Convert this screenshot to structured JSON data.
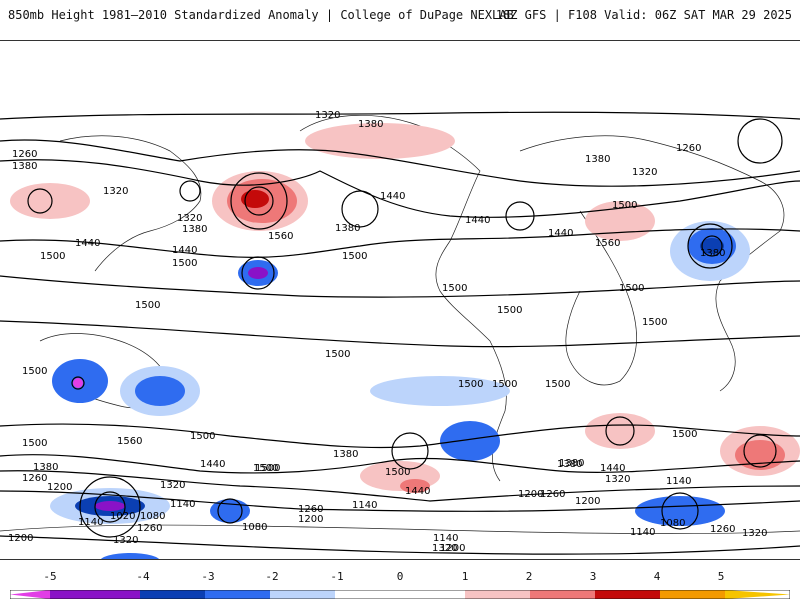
{
  "header": {
    "title_left": "850mb Height 1981–2010 Standardized Anomaly | College of DuPage NEXLAB",
    "title_right": "18Z GFS | F108 Valid: 06Z SAT MAR 29 2025"
  },
  "colors": {
    "neg5": "#e23ee6",
    "neg4": "#8a12c7",
    "neg3": "#0b3fb3",
    "neg2": "#2f6cf0",
    "neg1": "#bcd4fb",
    "zero": "#ffffff",
    "pos1": "#f7c3c3",
    "pos2": "#ee7878",
    "pos3": "#c40a0a",
    "pos4": "#f39a00",
    "pos5": "#f6c400"
  },
  "legend": {
    "ticks": [
      "-5",
      "-4",
      "-3",
      "-2",
      "-1",
      "0",
      "1",
      "2",
      "3",
      "4",
      "5"
    ]
  },
  "contour_labels": [
    "1320",
    "1380",
    "1260",
    "1380",
    "1320",
    "1320",
    "1380",
    "1560",
    "1440",
    "1500",
    "1440",
    "1500",
    "1380",
    "1500",
    "1440",
    "1440",
    "1500",
    "1560",
    "1380",
    "1440",
    "1380",
    "1260",
    "1320",
    "1500",
    "1500",
    "1500",
    "1500",
    "1500",
    "1500",
    "1500",
    "1500",
    "1500",
    "1500",
    "1500",
    "1560",
    "1500",
    "1500",
    "1440",
    "1500",
    "1380",
    "1440",
    "1380",
    "1380",
    "1440",
    "1320",
    "1260",
    "1320",
    "1200",
    "1140",
    "1080",
    "1020",
    "1140",
    "1200",
    "1080",
    "1260",
    "1200",
    "1140",
    "1320",
    "1260",
    "1200",
    "1140",
    "1260",
    "1200",
    "1140",
    "1200",
    "1380",
    "1320",
    "1260",
    "1140",
    "1080",
    "1140",
    "1260",
    "1320",
    "1200",
    "1500",
    "1500"
  ]
}
